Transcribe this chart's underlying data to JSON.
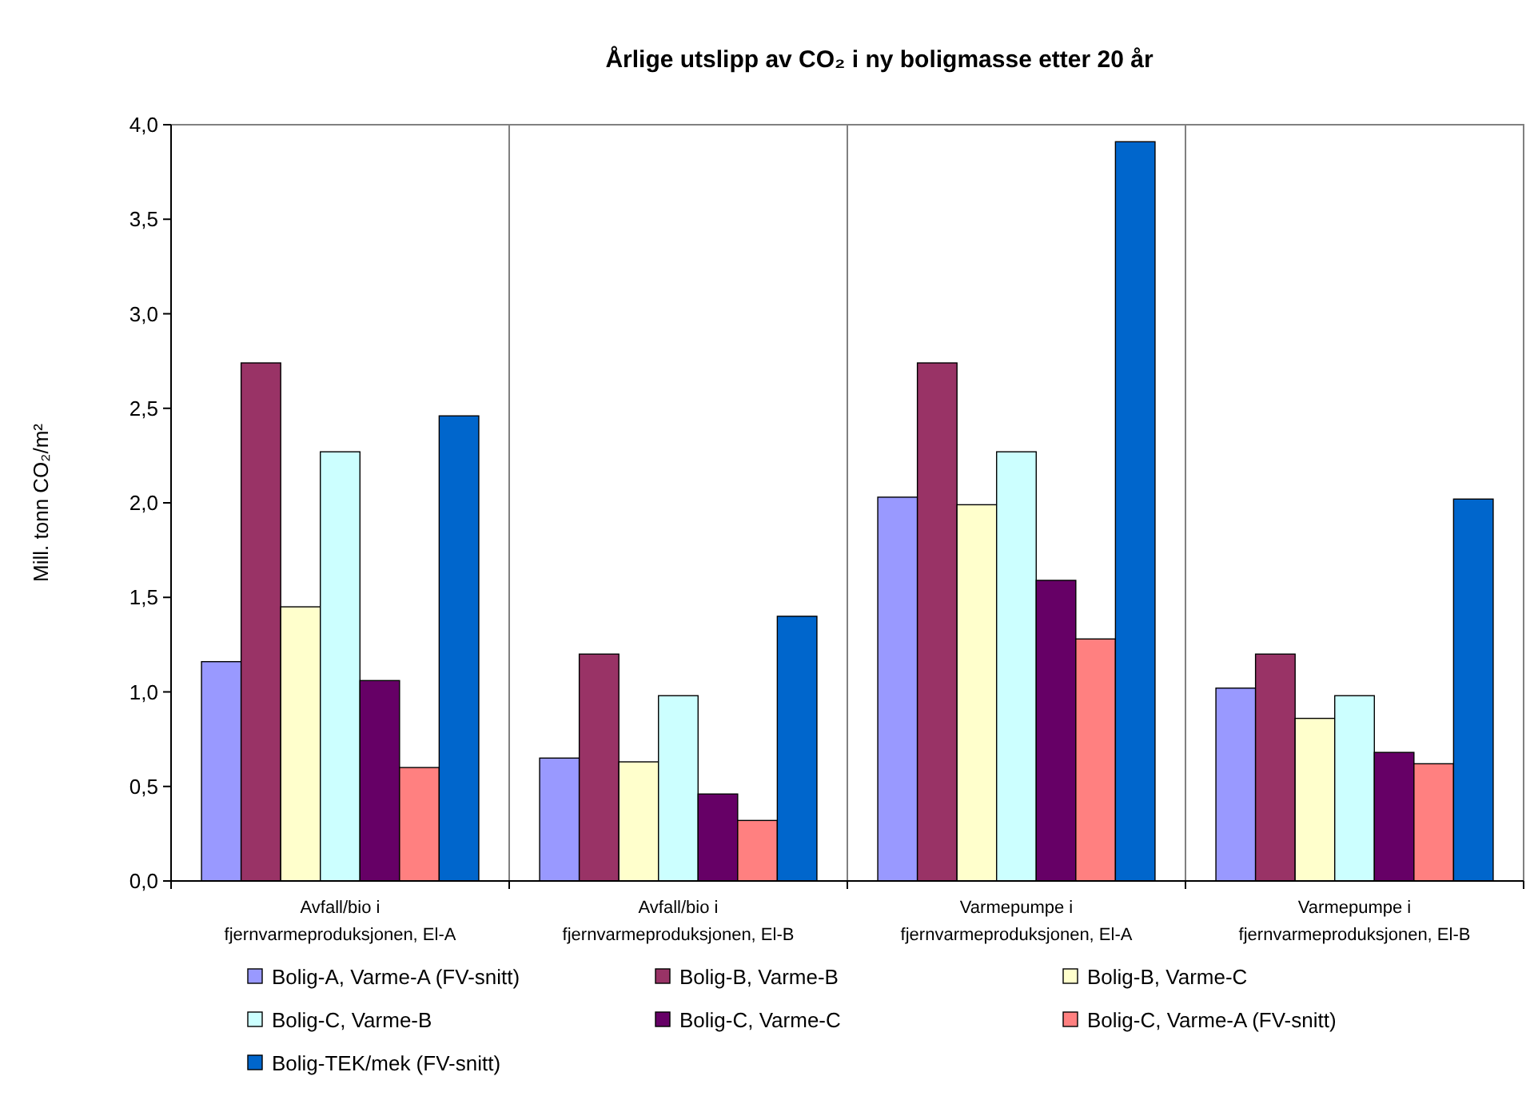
{
  "chart_data": {
    "type": "bar",
    "title": "Årlige utslipp av CO₂ i ny boligmasse etter 20 år",
    "ylabel": "Mill. tonn CO₂/m²",
    "categories": [
      "Avfall/bio i fjernvarmeproduksjonen, El-A",
      "Avfall/bio i fjernvarmeproduksjonen, El-B",
      "Varmepumpe i fjernvarmeproduksjonen, El-A",
      "Varmepumpe i fjernvarmeproduksjonen, El-B"
    ],
    "series": [
      {
        "name": "Bolig-A, Varme-A (FV-snitt)",
        "color": "#9999ff",
        "values": [
          1.16,
          0.65,
          2.03,
          1.02
        ]
      },
      {
        "name": "Bolig-B, Varme-B",
        "color": "#993366",
        "values": [
          2.74,
          1.2,
          2.74,
          1.2
        ]
      },
      {
        "name": "Bolig-B, Varme-C",
        "color": "#ffffcc",
        "values": [
          1.45,
          0.63,
          1.99,
          0.86
        ]
      },
      {
        "name": "Bolig-C, Varme-B",
        "color": "#ccffff",
        "values": [
          2.27,
          0.98,
          2.27,
          0.98
        ]
      },
      {
        "name": "Bolig-C, Varme-C",
        "color": "#660066",
        "values": [
          1.06,
          0.46,
          1.59,
          0.68
        ]
      },
      {
        "name": "Bolig-C, Varme-A (FV-snitt)",
        "color": "#ff8080",
        "values": [
          0.6,
          0.32,
          1.28,
          0.62
        ]
      },
      {
        "name": "Bolig-TEK/mek (FV-snitt)",
        "color": "#0066cc",
        "values": [
          2.46,
          1.4,
          3.91,
          2.02
        ]
      }
    ],
    "ylim": [
      0,
      4
    ],
    "yticks": [
      {
        "value": 0,
        "label": "0,0"
      },
      {
        "value": 0.5,
        "label": "0,5"
      },
      {
        "value": 1,
        "label": "1,0"
      },
      {
        "value": 1.5,
        "label": "1,5"
      },
      {
        "value": 2,
        "label": "2,0"
      },
      {
        "value": 2.5,
        "label": "2,5"
      },
      {
        "value": 3,
        "label": "3,0"
      },
      {
        "value": 3.5,
        "label": "3,5"
      },
      {
        "value": 4,
        "label": "4,0"
      }
    ],
    "grid": "x",
    "legend": "bottom"
  }
}
